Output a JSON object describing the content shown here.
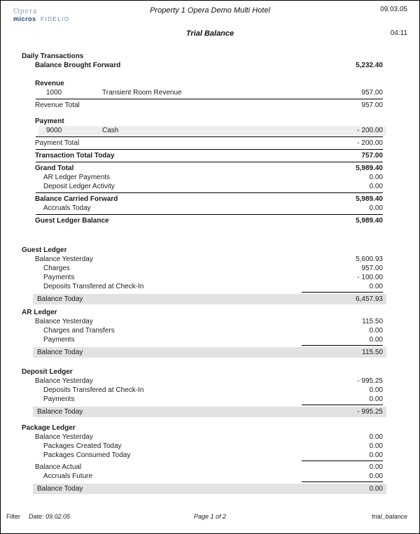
{
  "page": {
    "logo": {
      "opera_text": "Opera",
      "micros_text": "micros",
      "fidelio_text": "FIDELIO"
    },
    "header": {
      "property_title": "Property 1 Opera Demo Multi Hotel",
      "date": "09.03.05",
      "report_title": "Trial Balance",
      "time": "04:11"
    },
    "footer": {
      "filter_label": "Filter",
      "date_label": "Date: 09.02.05",
      "page_label": "Page 1 of 2",
      "report_name": "trial_balance"
    }
  },
  "colors": {
    "shaded_row": "#e2e2e2",
    "detail_stripe": "#eeeeee",
    "opera_blue": "#8ba2bd",
    "micros_blue": "#16418c",
    "fidelio_blue": "#5c85b4"
  },
  "report": {
    "blocks": [
      {
        "name": "Daily Transactions",
        "rows": [
          {
            "t": "sec",
            "label": "Daily Transactions"
          },
          {
            "t": "r",
            "label": "Balance Brought Forward",
            "value": "5,232.40",
            "b": 1,
            "i": 1
          },
          {
            "t": "g",
            "h": 13
          },
          {
            "t": "r",
            "label": "Revenue",
            "b": 1,
            "i": 1
          },
          {
            "t": "c",
            "code": "1000",
            "desc": "Transient Room Revenue",
            "value": "957.00"
          },
          {
            "t": "hr"
          },
          {
            "t": "r",
            "label": "Revenue Total",
            "value": "957.00",
            "i": 1
          },
          {
            "t": "g",
            "h": 10
          },
          {
            "t": "r",
            "label": "Payment",
            "b": 1,
            "i": 1
          },
          {
            "t": "c",
            "code": "9000",
            "desc": "Cash",
            "value": "- 200.00",
            "shade": 1
          },
          {
            "t": "hr"
          },
          {
            "t": "r",
            "label": "Payment Total",
            "value": "- 200.00",
            "i": 1
          },
          {
            "t": "hr"
          },
          {
            "t": "r",
            "label": "Transaction Total Today",
            "value": "757.00",
            "b": 1,
            "i": 1
          },
          {
            "t": "hr"
          },
          {
            "t": "r",
            "label": "Grand Total",
            "value": "5,989.40",
            "b": 1,
            "i": 1
          },
          {
            "t": "r",
            "label": "AR Ledger Payments",
            "value": "0.00",
            "i": 2
          },
          {
            "t": "r",
            "label": "Deposit Ledger Activity",
            "value": "0.00",
            "i": 2
          },
          {
            "t": "hr"
          },
          {
            "t": "r",
            "label": "Balance Carried Forward",
            "value": "5,989.40",
            "b": 1,
            "i": 1
          },
          {
            "t": "r",
            "label": "Accruals Today",
            "value": "0.00",
            "i": 2
          },
          {
            "t": "hr"
          },
          {
            "t": "r",
            "label": "Guest Ledger Balance",
            "value": "5,989.40",
            "b": 1,
            "i": 1
          },
          {
            "t": "g",
            "h": 29
          }
        ]
      },
      {
        "name": "Guest Ledger",
        "rows": [
          {
            "t": "sec",
            "label": "Guest Ledger"
          },
          {
            "t": "r",
            "label": "Balance Yesterday",
            "value": "5,600.93",
            "i": 1
          },
          {
            "t": "r",
            "label": "Charges",
            "value": "957.00",
            "i": 2
          },
          {
            "t": "r",
            "label": "Payments",
            "value": "- 100.00",
            "i": 2
          },
          {
            "t": "r",
            "label": "Deposits Transfered at Check-In",
            "value": "0.00",
            "i": 2
          },
          {
            "t": "hrp"
          },
          {
            "t": "r",
            "label": "Balance Today",
            "value": "6,457.93",
            "i": 1,
            "shade": 1
          },
          {
            "t": "g",
            "h": 5
          }
        ]
      },
      {
        "name": "AR Ledger",
        "rows": [
          {
            "t": "sec",
            "label": "AR Ledger"
          },
          {
            "t": "r",
            "label": "Balance Yesterday",
            "value": "115.50",
            "i": 1
          },
          {
            "t": "r",
            "label": "Charges and Transfers",
            "value": "0.00",
            "i": 2
          },
          {
            "t": "r",
            "label": "Payments",
            "value": "0.00",
            "i": 2
          },
          {
            "t": "hrp"
          },
          {
            "t": "r",
            "label": "Balance Today",
            "value": "115.50",
            "i": 1,
            "shade": 1
          },
          {
            "t": "g",
            "h": 14
          }
        ]
      },
      {
        "name": "Deposit Ledger",
        "rows": [
          {
            "t": "sec",
            "label": "Deposit Ledger"
          },
          {
            "t": "r",
            "label": "Balance Yesterday",
            "value": "- 995.25",
            "i": 1
          },
          {
            "t": "r",
            "label": "Deposits Transfered at Check-In",
            "value": "0.00",
            "i": 2
          },
          {
            "t": "r",
            "label": "Payments",
            "value": "0.00",
            "i": 2
          },
          {
            "t": "hrp"
          },
          {
            "t": "r",
            "label": "Balance Today",
            "value": "- 995.25",
            "i": 1,
            "shade": 1
          },
          {
            "t": "g",
            "h": 9
          }
        ]
      },
      {
        "name": "Package Ledger",
        "rows": [
          {
            "t": "sec",
            "label": "Package Ledger"
          },
          {
            "t": "r",
            "label": "Balance Yesterday",
            "value": "0.00",
            "i": 1
          },
          {
            "t": "r",
            "label": "Packages Created Today",
            "value": "0.00",
            "i": 2
          },
          {
            "t": "r",
            "label": "Packages Consumed Today",
            "value": "0.00",
            "i": 2
          },
          {
            "t": "hrp"
          },
          {
            "t": "r",
            "label": "Balance Actual",
            "value": "0.00",
            "i": 1
          },
          {
            "t": "r",
            "label": "Accruals Future",
            "value": "0.00",
            "i": 2
          },
          {
            "t": "hrp"
          },
          {
            "t": "r",
            "label": "Balance Today",
            "value": "0.00",
            "i": 1,
            "shade": 1
          }
        ]
      }
    ]
  }
}
